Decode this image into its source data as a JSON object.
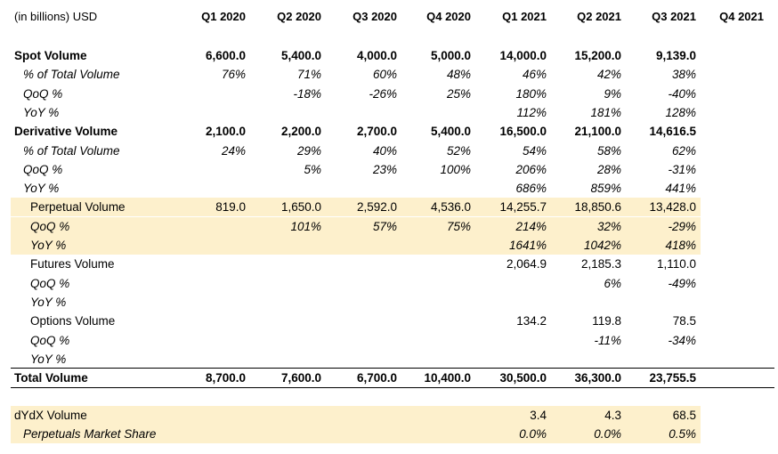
{
  "header": {
    "units": "(in billions) USD",
    "quarters": [
      "Q1 2020",
      "Q2 2020",
      "Q3 2020",
      "Q4 2020",
      "Q1 2021",
      "Q2 2021",
      "Q3 2021",
      "Q4 2021"
    ]
  },
  "rows": [
    {
      "label": "Spot Volume",
      "style": "bold",
      "values": [
        "6,600.0",
        "5,400.0",
        "4,000.0",
        "5,000.0",
        "14,000.0",
        "15,200.0",
        "9,139.0",
        ""
      ]
    },
    {
      "label": "% of Total Volume",
      "style": "ital",
      "values": [
        "76%",
        "71%",
        "60%",
        "48%",
        "46%",
        "42%",
        "38%",
        ""
      ]
    },
    {
      "label": "QoQ %",
      "style": "ital",
      "values": [
        "",
        "-18%",
        "-26%",
        "25%",
        "180%",
        "9%",
        "-40%",
        ""
      ]
    },
    {
      "label": "YoY %",
      "style": "ital",
      "values": [
        "",
        "",
        "",
        "",
        "112%",
        "181%",
        "128%",
        ""
      ]
    },
    {
      "label": "Derivative Volume",
      "style": "bold",
      "values": [
        "2,100.0",
        "2,200.0",
        "2,700.0",
        "5,400.0",
        "16,500.0",
        "21,100.0",
        "14,616.5",
        ""
      ]
    },
    {
      "label": "% of Total Volume",
      "style": "ital",
      "values": [
        "24%",
        "29%",
        "40%",
        "52%",
        "54%",
        "58%",
        "62%",
        ""
      ]
    },
    {
      "label": "QoQ %",
      "style": "ital",
      "values": [
        "",
        "5%",
        "23%",
        "100%",
        "206%",
        "28%",
        "-31%",
        ""
      ]
    },
    {
      "label": "YoY %",
      "style": "ital",
      "values": [
        "",
        "",
        "",
        "",
        "686%",
        "859%",
        "441%",
        ""
      ]
    },
    {
      "label": "Perpetual Volume",
      "style": "sub",
      "hl": true,
      "values": [
        "819.0",
        "1,650.0",
        "2,592.0",
        "4,536.0",
        "14,255.7",
        "18,850.6",
        "13,428.0",
        ""
      ]
    },
    {
      "label": "QoQ %",
      "style": "subital",
      "hl": true,
      "values": [
        "",
        "101%",
        "57%",
        "75%",
        "214%",
        "32%",
        "-29%",
        ""
      ]
    },
    {
      "label": "YoY %",
      "style": "subital",
      "hl": true,
      "values": [
        "",
        "",
        "",
        "",
        "1641%",
        "1042%",
        "418%",
        ""
      ]
    },
    {
      "label": "Futures Volume",
      "style": "sub",
      "values": [
        "",
        "",
        "",
        "",
        "2,064.9",
        "2,185.3",
        "1,110.0",
        ""
      ]
    },
    {
      "label": "QoQ %",
      "style": "subital",
      "values": [
        "",
        "",
        "",
        "",
        "",
        "6%",
        "-49%",
        ""
      ]
    },
    {
      "label": "YoY %",
      "style": "subital",
      "values": [
        "",
        "",
        "",
        "",
        "",
        "",
        "",
        ""
      ]
    },
    {
      "label": "Options Volume",
      "style": "sub",
      "values": [
        "",
        "",
        "",
        "",
        "134.2",
        "119.8",
        "78.5",
        ""
      ]
    },
    {
      "label": "QoQ %",
      "style": "subital",
      "values": [
        "",
        "",
        "",
        "",
        "",
        "-11%",
        "-34%",
        ""
      ]
    },
    {
      "label": "YoY %",
      "style": "subital",
      "values": [
        "",
        "",
        "",
        "",
        "",
        "",
        "",
        ""
      ]
    },
    {
      "label": "Total Volume",
      "style": "bold",
      "values": [
        "8,700.0",
        "7,600.0",
        "6,700.0",
        "10,400.0",
        "30,500.0",
        "36,300.0",
        "23,755.5",
        ""
      ]
    }
  ],
  "dydx": [
    {
      "label": "dYdX Volume",
      "style": "plain",
      "hl": true,
      "values": [
        "",
        "",
        "",
        "",
        "3.4",
        "4.3",
        "68.5",
        ""
      ]
    },
    {
      "label": "Perpetuals Market Share",
      "style": "ital",
      "hl": true,
      "values": [
        "",
        "",
        "",
        "",
        "0.0%",
        "0.0%",
        "0.5%",
        ""
      ]
    }
  ]
}
